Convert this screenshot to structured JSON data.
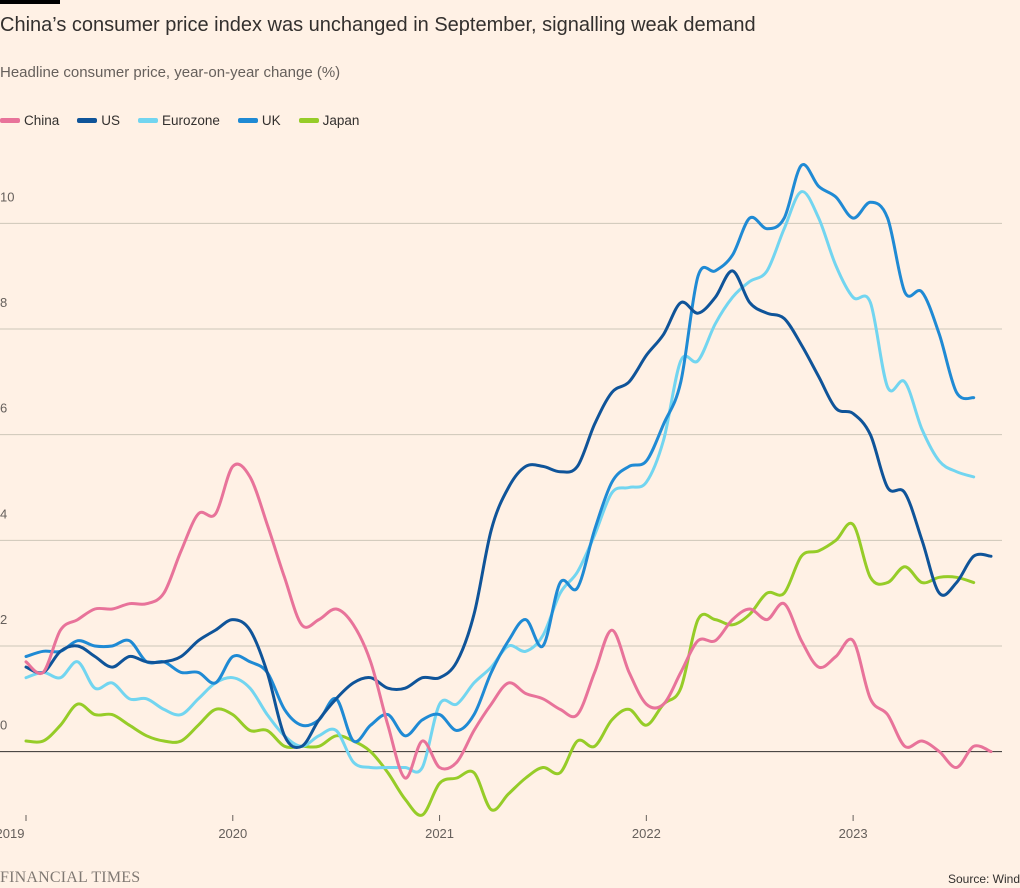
{
  "header": {
    "title": "China’s consumer price index was unchanged in September, signalling weak demand",
    "subtitle": "Headline consumer price, year-on-year change (%)"
  },
  "footer": {
    "logo": "FINANCIAL TIMES",
    "source": "Source: Wind"
  },
  "chart_data": {
    "type": "line",
    "title": "China’s consumer price index was unchanged in September, signalling weak demand",
    "subtitle": "Headline consumer price, year-on-year change (%)",
    "xlabel": "",
    "ylabel": "",
    "xlim": [
      2019.0,
      2023.72
    ],
    "ylim": [
      -1.2,
      11.2
    ],
    "y_ticks": [
      0,
      2,
      4,
      6,
      8,
      10
    ],
    "x_ticks": [
      {
        "value": 2019,
        "label": "2019"
      },
      {
        "value": 2020,
        "label": "2020"
      },
      {
        "value": 2021,
        "label": "2021"
      },
      {
        "value": 2022,
        "label": "2022"
      },
      {
        "value": 2023,
        "label": "2023"
      }
    ],
    "grid": true,
    "legend_position": "top-left",
    "x_start": "2019-01",
    "x_step": "month",
    "series": [
      {
        "name": "China",
        "color": "#e8739a",
        "values": [
          1.7,
          1.5,
          2.3,
          2.5,
          2.7,
          2.7,
          2.8,
          2.8,
          3.0,
          3.8,
          4.5,
          4.5,
          5.4,
          5.2,
          4.3,
          3.3,
          2.4,
          2.5,
          2.7,
          2.4,
          1.7,
          0.5,
          -0.5,
          0.2,
          -0.3,
          -0.2,
          0.4,
          0.9,
          1.3,
          1.1,
          1.0,
          0.8,
          0.7,
          1.5,
          2.3,
          1.5,
          0.9,
          0.9,
          1.5,
          2.1,
          2.1,
          2.5,
          2.7,
          2.5,
          2.8,
          2.1,
          1.6,
          1.8,
          2.1,
          1.0,
          0.7,
          0.1,
          0.2,
          0.0,
          -0.3,
          0.1,
          0.0
        ]
      },
      {
        "name": "US",
        "color": "#0f5499",
        "values": [
          1.6,
          1.5,
          1.9,
          2.0,
          1.8,
          1.6,
          1.8,
          1.7,
          1.7,
          1.8,
          2.1,
          2.3,
          2.5,
          2.3,
          1.5,
          0.3,
          0.1,
          0.6,
          1.0,
          1.3,
          1.4,
          1.2,
          1.2,
          1.4,
          1.4,
          1.7,
          2.6,
          4.2,
          5.0,
          5.4,
          5.4,
          5.3,
          5.4,
          6.2,
          6.8,
          7.0,
          7.5,
          7.9,
          8.5,
          8.3,
          8.6,
          9.1,
          8.5,
          8.3,
          8.2,
          7.7,
          7.1,
          6.5,
          6.4,
          6.0,
          5.0,
          4.9,
          4.0,
          3.0,
          3.2,
          3.7,
          3.7
        ]
      },
      {
        "name": "Eurozone",
        "color": "#72d5f0",
        "values": [
          1.4,
          1.5,
          1.4,
          1.7,
          1.2,
          1.3,
          1.0,
          1.0,
          0.8,
          0.7,
          1.0,
          1.3,
          1.4,
          1.2,
          0.7,
          0.3,
          0.1,
          0.3,
          0.4,
          -0.2,
          -0.3,
          -0.3,
          -0.3,
          -0.3,
          0.9,
          0.9,
          1.3,
          1.6,
          2.0,
          1.9,
          2.2,
          3.0,
          3.4,
          4.1,
          4.9,
          5.0,
          5.1,
          5.9,
          7.4,
          7.4,
          8.1,
          8.6,
          8.9,
          9.1,
          9.9,
          10.6,
          10.1,
          9.2,
          8.6,
          8.5,
          6.9,
          7.0,
          6.1,
          5.5,
          5.3,
          5.2
        ]
      },
      {
        "name": "UK",
        "color": "#1f8ad4",
        "values": [
          1.8,
          1.9,
          1.9,
          2.1,
          2.0,
          2.0,
          2.1,
          1.7,
          1.7,
          1.5,
          1.5,
          1.3,
          1.8,
          1.7,
          1.5,
          0.8,
          0.5,
          0.6,
          1.0,
          0.2,
          0.5,
          0.7,
          0.3,
          0.6,
          0.7,
          0.4,
          0.7,
          1.5,
          2.1,
          2.5,
          2.0,
          3.2,
          3.1,
          4.2,
          5.1,
          5.4,
          5.5,
          6.2,
          7.0,
          9.0,
          9.1,
          9.4,
          10.1,
          9.9,
          10.1,
          11.1,
          10.7,
          10.5,
          10.1,
          10.4,
          10.1,
          8.7,
          8.7,
          7.9,
          6.8,
          6.7
        ]
      },
      {
        "name": "Japan",
        "color": "#96cc28",
        "values": [
          0.2,
          0.2,
          0.5,
          0.9,
          0.7,
          0.7,
          0.5,
          0.3,
          0.2,
          0.2,
          0.5,
          0.8,
          0.7,
          0.4,
          0.4,
          0.1,
          0.1,
          0.1,
          0.3,
          0.2,
          0.0,
          -0.4,
          -0.9,
          -1.2,
          -0.6,
          -0.5,
          -0.4,
          -1.1,
          -0.8,
          -0.5,
          -0.3,
          -0.4,
          0.2,
          0.1,
          0.6,
          0.8,
          0.5,
          0.9,
          1.2,
          2.5,
          2.5,
          2.4,
          2.6,
          3.0,
          3.0,
          3.7,
          3.8,
          4.0,
          4.3,
          3.3,
          3.2,
          3.5,
          3.2,
          3.3,
          3.3,
          3.2
        ]
      }
    ]
  }
}
